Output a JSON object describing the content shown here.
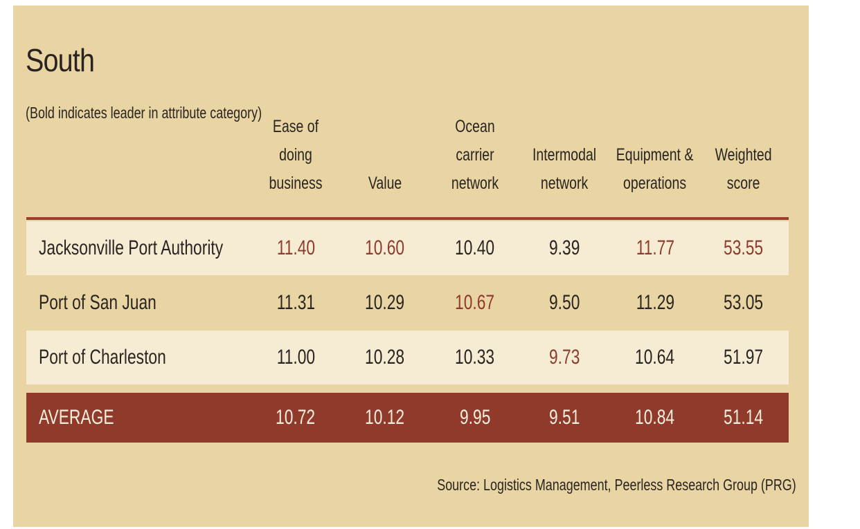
{
  "colors": {
    "panel_background": "#e8d5a3",
    "row_light": "#f6ecd4",
    "average_row": "#8f3a2a",
    "leader_text": "#8e3a2c",
    "header_rule": "#9c3e2c"
  },
  "chart_data": {
    "type": "table",
    "title": "South",
    "subtitle": "(Bold indicates leader in attribute category)",
    "columns": [
      "Ease of doing business",
      "Value",
      "Ocean carrier network",
      "Intermodal network",
      "Equipment & operations",
      "Weighted score"
    ],
    "column_header_lines": [
      "Ease of doing\nbusiness",
      "Value",
      "Ocean carrier\nnetwork",
      "Intermodal\nnetwork",
      "Equipment &\noperations",
      "Weighted\nscore"
    ],
    "rows": [
      {
        "name": "Jacksonville Port Authority",
        "values": [
          "11.40",
          "10.60",
          "10.40",
          "9.39",
          "11.77",
          "53.55"
        ],
        "leaders": [
          true,
          true,
          false,
          false,
          true,
          true
        ]
      },
      {
        "name": "Port of San Juan",
        "values": [
          "11.31",
          "10.29",
          "10.67",
          "9.50",
          "11.29",
          "53.05"
        ],
        "leaders": [
          false,
          false,
          true,
          false,
          false,
          false
        ]
      },
      {
        "name": "Port of Charleston",
        "values": [
          "11.00",
          "10.28",
          "10.33",
          "9.73",
          "10.64",
          "51.97"
        ],
        "leaders": [
          false,
          false,
          false,
          true,
          false,
          false
        ]
      }
    ],
    "average": {
      "name": "AVERAGE",
      "values": [
        "10.72",
        "10.12",
        "9.95",
        "9.51",
        "10.84",
        "51.14"
      ]
    },
    "source": "Source: Logistics Management, Peerless Research Group (PRG)"
  }
}
